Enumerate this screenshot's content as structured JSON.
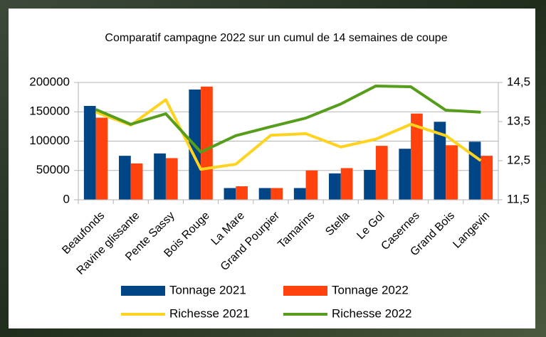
{
  "chart_data": {
    "type": "bar-line",
    "title": "Comparatif campagne 2022 sur un cumul de 14 semaines de coupe",
    "categories": [
      "Beaufonds",
      "Ravine glissante",
      "Pente Sassy",
      "Bois Rouge",
      "La Mare",
      "Grand Pourpier",
      "Tamarins",
      "Stella",
      "Le Gol",
      "Casernes",
      "Grand Bois",
      "Langevin"
    ],
    "series": [
      {
        "name": "Tonnage 2021",
        "color": "#004586",
        "kind": "bar",
        "values": [
          160000,
          75000,
          79000,
          188000,
          20000,
          20000,
          20000,
          45000,
          51000,
          87000,
          133000,
          99000
        ]
      },
      {
        "name": "Tonnage 2022",
        "color": "#ff420e",
        "kind": "bar",
        "values": [
          140000,
          62000,
          71000,
          193000,
          23000,
          20000,
          50000,
          54000,
          92000,
          147000,
          93000,
          75000
        ]
      },
      {
        "name": "Richesse 2021",
        "color": "#ffd320",
        "kind": "line",
        "axis": "y2",
        "values": [
          13.74,
          13.41,
          14.06,
          12.28,
          12.41,
          13.15,
          13.19,
          12.85,
          13.05,
          13.43,
          13.14,
          12.5
        ]
      },
      {
        "name": "Richesse 2022",
        "color": "#579d1c",
        "kind": "line",
        "axis": "y2",
        "values": [
          13.81,
          13.43,
          13.7,
          12.72,
          13.14,
          13.37,
          13.59,
          13.95,
          14.41,
          14.39,
          13.79,
          13.74
        ]
      }
    ],
    "ylim": [
      0,
      200000
    ],
    "yticks": [
      0,
      50000,
      100000,
      150000,
      200000
    ],
    "y2lim": [
      11.5,
      14.5
    ],
    "y2ticks": [
      {
        "value": 11.5,
        "label": "11,5"
      },
      {
        "value": 12.5,
        "label": "12,5"
      },
      {
        "value": 13.5,
        "label": "13,5"
      },
      {
        "value": 14.5,
        "label": "14,5"
      }
    ],
    "grid": true
  }
}
